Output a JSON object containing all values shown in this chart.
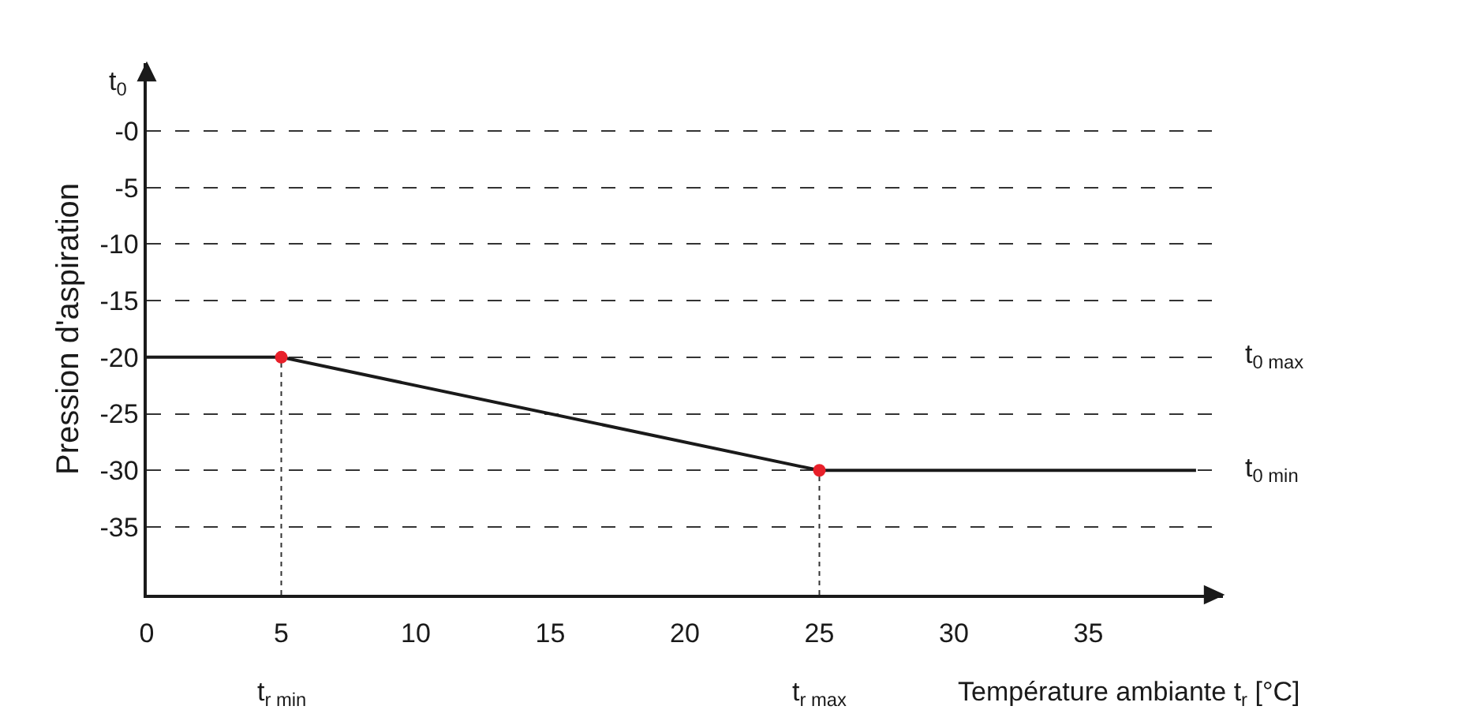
{
  "chart_data": {
    "type": "line",
    "ylabel": "Pression d'aspiration",
    "xlabel": "Température ambiante t$_{r}$ [°C]",
    "annotations": [
      "t$_{0}$",
      "t$_{0 max}$",
      "t$_{0 min}$",
      "t$_{r min}$",
      "t$_{r max}$"
    ],
    "series": [
      {
        "color": "#1a1a1a",
        "x": [
          0,
          5,
          25,
          39
        ],
        "values": [
          -20,
          -20,
          -30,
          -30
        ],
        "marker": "none",
        "line_style": "solid"
      },
      {
        "type": "scatter",
        "color": "#e8202a",
        "x": [
          5,
          25
        ],
        "values": [
          -20,
          -30
        ],
        "marker": "circle"
      }
    ],
    "ref_lines": [
      {
        "axis": "x",
        "value": 5,
        "line_style": "dotted"
      },
      {
        "axis": "x",
        "value": 25,
        "line_style": "dotted"
      }
    ],
    "xlim": [
      0,
      40
    ],
    "ylim": [
      -41,
      6
    ],
    "xticks": [
      0,
      5,
      10,
      15,
      20,
      25,
      30,
      35
    ],
    "yticks": [
      {
        "value": 0,
        "label": "-0"
      },
      -5,
      -10,
      -15,
      -20,
      -25,
      -30,
      -35
    ],
    "grid": "y"
  }
}
